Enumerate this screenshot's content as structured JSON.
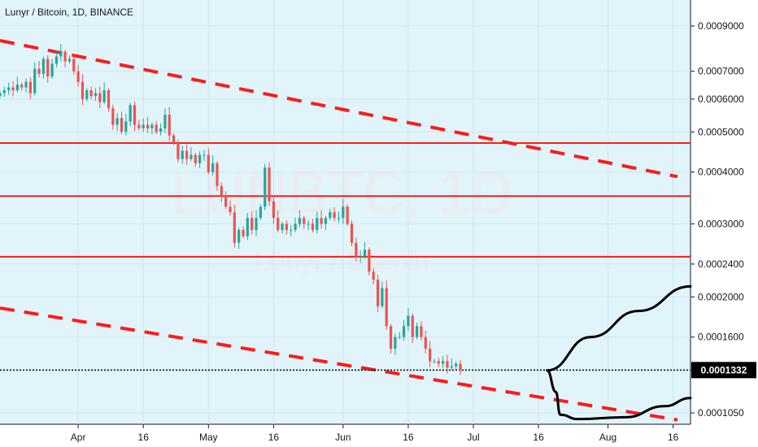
{
  "header": {
    "title": "Lunyr / Bitcoin, 1D, BINANCE"
  },
  "watermark": {
    "symbol": "LUNBTC, 1D",
    "name": "Lunyr / Bitcoin"
  },
  "colors": {
    "up": "#26a69a",
    "down": "#ef5350",
    "lines": "#ff1a1a",
    "projection": "#000000",
    "price_tag_bg": "#000000"
  },
  "last_price": "0.0001332",
  "chart_data": {
    "type": "candlestick",
    "y_scale": "log",
    "ylim": [
      9.86e-05,
      0.00104
    ],
    "x_range": [
      "2018-03-14",
      "2018-08-20"
    ],
    "x_ticks": [
      {
        "date": "2018-04-01",
        "label": "Apr"
      },
      {
        "date": "2018-04-16",
        "label": "16"
      },
      {
        "date": "2018-05-01",
        "label": "May"
      },
      {
        "date": "2018-05-16",
        "label": "16"
      },
      {
        "date": "2018-06-01",
        "label": "Jun"
      },
      {
        "date": "2018-06-16",
        "label": "16"
      },
      {
        "date": "2018-07-01",
        "label": "Jul"
      },
      {
        "date": "2018-07-16",
        "label": "16"
      },
      {
        "date": "2018-08-01",
        "label": "Aug"
      },
      {
        "date": "2018-08-16",
        "label": "16"
      }
    ],
    "y_ticks": [
      {
        "value": 0.0009,
        "label": "0.0009000"
      },
      {
        "value": 0.0007,
        "label": "0.0007000"
      },
      {
        "value": 0.0006,
        "label": "0.0006000"
      },
      {
        "value": 0.0005,
        "label": "0.0005000"
      },
      {
        "value": 0.0004,
        "label": "0.0004000"
      },
      {
        "value": 0.0003,
        "label": "0.0003000"
      },
      {
        "value": 0.00024,
        "label": "0.0002400"
      },
      {
        "value": 0.0002,
        "label": "0.0002000"
      },
      {
        "value": 0.00016,
        "label": "0.0001600"
      },
      {
        "value": 0.000105,
        "label": "0.0001050"
      }
    ],
    "start_date": "2018-03-14",
    "closes": [
      0.00062,
      0.00063,
      0.00064,
      0.00063,
      0.00065,
      0.00064,
      0.00066,
      0.00062,
      0.00071,
      0.00069,
      0.00075,
      0.00068,
      0.00073,
      0.00076,
      0.00078,
      0.00074,
      0.00075,
      0.0007,
      0.00066,
      0.0006,
      0.00063,
      0.00061,
      0.00062,
      0.00059,
      0.00063,
      0.00057,
      0.00052,
      0.00054,
      0.0005,
      0.00053,
      0.00058,
      0.00052,
      0.00051,
      0.00052,
      0.00051,
      0.00052,
      0.0005,
      0.00051,
      0.00055,
      0.00049,
      0.00047,
      0.00043,
      0.00045,
      0.00043,
      0.00044,
      0.00042,
      0.00044,
      0.00044,
      0.0004,
      0.00042,
      0.00037,
      0.00035,
      0.00033,
      0.00032,
      0.00027,
      0.00029,
      0.00028,
      0.00031,
      0.00029,
      0.00031,
      0.00033,
      0.00041,
      0.00034,
      0.00031,
      0.00029,
      0.0003,
      0.00029,
      0.00029,
      0.0003,
      0.00031,
      0.0003,
      0.0003,
      0.00029,
      0.00031,
      0.0003,
      0.00031,
      0.00032,
      0.00031,
      0.00031,
      0.00033,
      0.0003,
      0.00027,
      0.00025,
      0.00025,
      0.00026,
      0.00023,
      0.00022,
      0.00019,
      0.00021,
      0.00017,
      0.00015,
      0.00016,
      0.00016,
      0.00017,
      0.00018,
      0.00016,
      0.00017,
      0.00016,
      0.00015,
      0.00014,
      0.00014,
      0.000138,
      0.00014,
      0.000135,
      0.000136,
      0.000138,
      0.000133
    ],
    "resistance_levels": [
      0.00047,
      0.00035,
      0.00025
    ],
    "upper_trendline": {
      "from": {
        "date": "2018-03-14",
        "value": 0.00083
      },
      "to": {
        "date": "2018-08-17",
        "value": 0.00039
      }
    },
    "lower_trendline": {
      "from": {
        "date": "2018-03-14",
        "value": 0.000188
      },
      "to": {
        "date": "2018-08-17",
        "value": 0.000101
      }
    },
    "projection_up": [
      {
        "date": "2018-07-18",
        "value": 0.000133
      },
      {
        "date": "2018-07-28",
        "value": 0.00016
      },
      {
        "date": "2018-08-08",
        "value": 0.000185
      },
      {
        "date": "2018-08-20",
        "value": 0.000212
      }
    ],
    "projection_down": [
      {
        "date": "2018-07-18",
        "value": 0.000133
      },
      {
        "date": "2018-07-20",
        "value": 0.000118
      },
      {
        "date": "2018-07-21",
        "value": 0.000104
      },
      {
        "date": "2018-07-25",
        "value": 0.0001015
      },
      {
        "date": "2018-08-05",
        "value": 0.0001025
      },
      {
        "date": "2018-08-14",
        "value": 0.000109
      },
      {
        "date": "2018-08-20",
        "value": 0.000114
      }
    ]
  }
}
